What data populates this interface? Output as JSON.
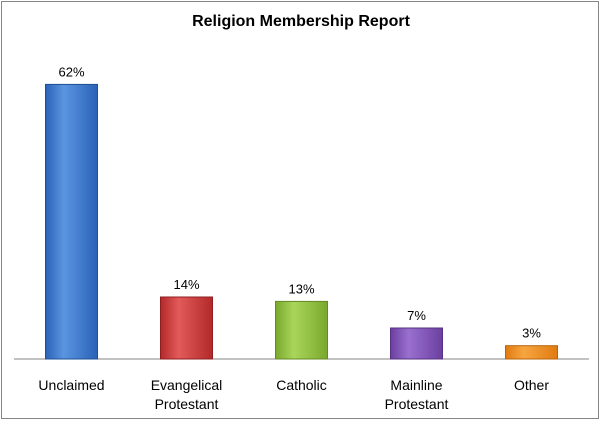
{
  "chart_data": {
    "type": "bar",
    "title": "Religion Membership Report",
    "xlabel": "",
    "ylabel": "",
    "ylim": [
      0,
      70
    ],
    "grid": false,
    "legend": "none",
    "categories": [
      [
        "Unclaimed"
      ],
      [
        "Evangelical",
        "Protestant"
      ],
      [
        "Catholic"
      ],
      [
        "Mainline",
        "Protestant"
      ],
      [
        "Other"
      ]
    ],
    "values": [
      62,
      14,
      13,
      7,
      3
    ],
    "value_labels": [
      "62%",
      "14%",
      "13%",
      "7%",
      "3%"
    ],
    "colors": [
      {
        "top": "#5a95e0",
        "bottom": "#2a62b8",
        "edge": "#1f4f94"
      },
      {
        "top": "#e25a5a",
        "bottom": "#b32929",
        "edge": "#8f1f1f"
      },
      {
        "top": "#a9d65a",
        "bottom": "#7aa82d",
        "edge": "#648a23"
      },
      {
        "top": "#9a70cf",
        "bottom": "#6a3fa0",
        "edge": "#553282"
      },
      {
        "top": "#f7a540",
        "bottom": "#e07b10",
        "edge": "#b8640b"
      }
    ]
  }
}
